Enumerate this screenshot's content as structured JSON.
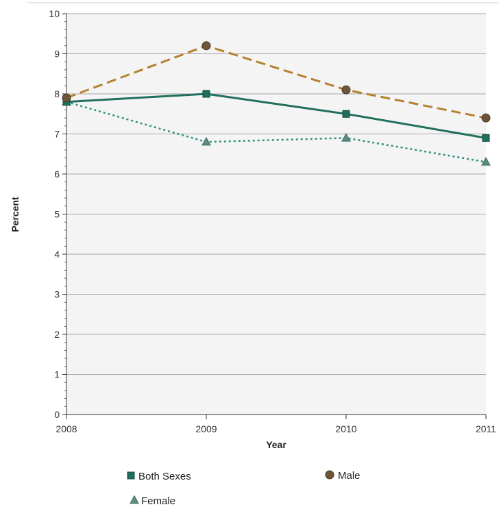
{
  "chart_data": {
    "type": "line",
    "title": "",
    "xlabel": "Year",
    "ylabel": "Percent",
    "x": [
      "2008",
      "2009",
      "2010",
      "2011"
    ],
    "ylim": [
      0,
      10
    ],
    "yticks": [
      0,
      1,
      2,
      3,
      4,
      5,
      6,
      7,
      8,
      9,
      10
    ],
    "grid": true,
    "legend_position": "bottom",
    "series": [
      {
        "name": "Both Sexes",
        "values": [
          7.8,
          8.0,
          7.5,
          6.9
        ],
        "color": "#1f6f5c",
        "line_style": "solid",
        "marker": "square"
      },
      {
        "name": "Male",
        "values": [
          7.9,
          9.2,
          8.1,
          7.4
        ],
        "color": "#b5812f",
        "marker_color": "#6e5538",
        "line_style": "dashed",
        "marker": "circle"
      },
      {
        "name": "Female",
        "values": [
          7.8,
          6.8,
          6.9,
          6.3
        ],
        "color": "#2f8f80",
        "marker_color": "#5a8e80",
        "line_style": "dotted",
        "marker": "triangle"
      }
    ]
  }
}
